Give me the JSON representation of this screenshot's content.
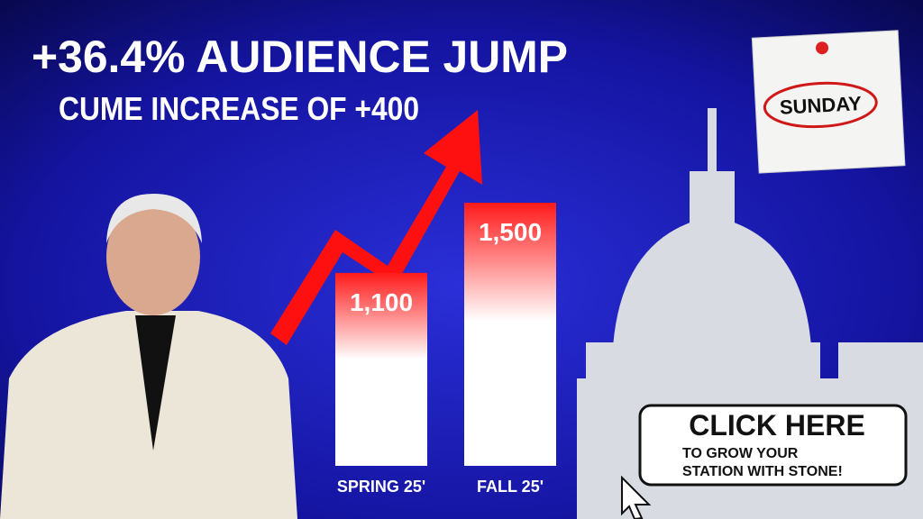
{
  "chart_data": {
    "type": "bar",
    "title": "+36.4% AUDIENCE JUMP",
    "subtitle": "CUME INCREASE OF +400",
    "categories": [
      "SPRING 25'",
      "FALL 25'"
    ],
    "values": [
      1100,
      1500
    ],
    "value_labels": [
      "1,100",
      "1,500"
    ],
    "color": "#ff1a1a",
    "annotations": [
      "SUNDAY"
    ]
  },
  "cta": {
    "title": "CLICK HERE",
    "lines": [
      "TO GROW YOUR",
      "STATION WITH STONE!"
    ]
  }
}
